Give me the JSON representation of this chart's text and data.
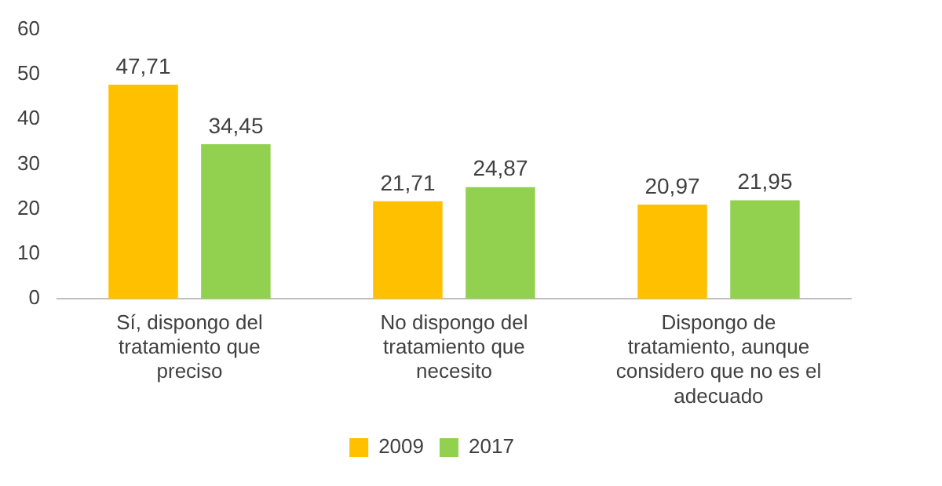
{
  "chart_data": {
    "type": "bar",
    "categories": [
      "Sí, dispongo del tratamiento que preciso",
      "No dispongo del tratamiento que necesito",
      "Dispongo de tratamiento, aunque considero que no es el adecuado"
    ],
    "series": [
      {
        "name": "2009",
        "color": "#ffc000",
        "values": [
          47.71,
          21.71,
          20.97
        ],
        "value_labels": [
          "47,71",
          "21,71",
          "20,97"
        ]
      },
      {
        "name": "2017",
        "color": "#92d050",
        "values": [
          34.45,
          24.87,
          21.95
        ],
        "value_labels": [
          "34,45",
          "24,87",
          "21,95"
        ]
      }
    ],
    "ylim": [
      0,
      60
    ],
    "yticks": [
      0,
      10,
      20,
      30,
      40,
      50,
      60
    ],
    "grid": false,
    "legend": "bottom"
  }
}
